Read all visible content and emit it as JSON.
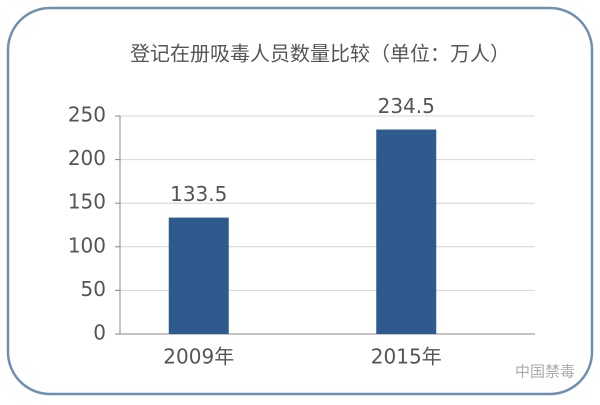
{
  "chart_data": {
    "type": "bar",
    "title": "登记在册吸毒人员数量比较（单位：万人）",
    "categories": [
      "2009年",
      "2015年"
    ],
    "values": [
      133.5,
      234.5
    ],
    "color": "#2e5a8e",
    "ylim": [
      0,
      250
    ],
    "yticks": [
      0,
      50,
      100,
      150,
      200,
      250
    ],
    "grid": true,
    "watermark": "中国禁毒"
  }
}
